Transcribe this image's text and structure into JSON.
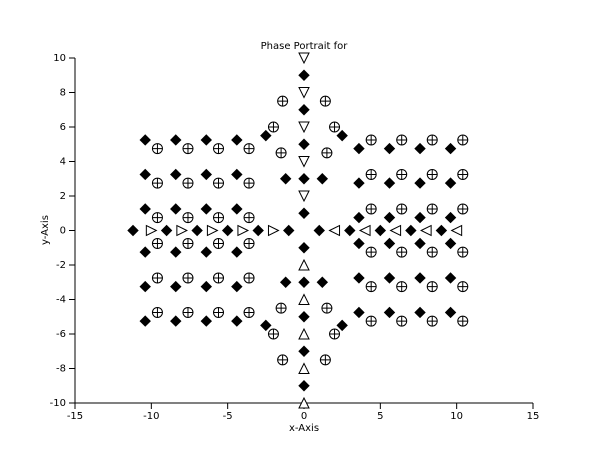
{
  "chart_data": {
    "type": "scatter",
    "title": "Phase Portrait for",
    "x_label": "x-Axis",
    "y_label": "y-Axis",
    "xlim": [
      -15,
      15
    ],
    "ylim": [
      -10,
      10
    ],
    "xticks": [
      -15,
      -10,
      -5,
      0,
      5,
      10,
      15
    ],
    "yticks": [
      -10,
      -8,
      -6,
      -4,
      -2,
      0,
      2,
      4,
      6,
      8,
      10
    ],
    "color": "#000000",
    "series": [
      {
        "marker": "diamond",
        "x": [
          -10.4,
          -8.4,
          -6.4,
          -4.4,
          3.6,
          5.6,
          7.6,
          9.6,
          -10.4,
          -8.4,
          -6.4,
          -4.4,
          3.6,
          5.6,
          7.6,
          9.6,
          -10.4,
          -8.4,
          -6.4,
          -4.4,
          3.6,
          5.6,
          7.6,
          9.6,
          -10.4,
          -8.4,
          -6.4,
          -4.4,
          3.6,
          5.6,
          7.6,
          9.6,
          -10.4,
          -8.4,
          -6.4,
          -4.4,
          3.6,
          5.6,
          7.6,
          9.6,
          -10.4,
          -8.4,
          -6.4,
          -4.4,
          3.6,
          5.6,
          7.6,
          9.6
        ],
        "y": [
          5.25,
          5.25,
          5.25,
          5.25,
          4.75,
          4.75,
          4.75,
          4.75,
          3.25,
          3.25,
          3.25,
          3.25,
          2.75,
          2.75,
          2.75,
          2.75,
          1.25,
          1.25,
          1.25,
          1.25,
          0.75,
          0.75,
          0.75,
          0.75,
          -1.25,
          -1.25,
          -1.25,
          -1.25,
          -0.75,
          -0.75,
          -0.75,
          -0.75,
          -3.25,
          -3.25,
          -3.25,
          -3.25,
          -2.75,
          -2.75,
          -2.75,
          -2.75,
          -5.25,
          -5.25,
          -5.25,
          -5.25,
          -4.75,
          -4.75,
          -4.75,
          -4.75
        ]
      },
      {
        "marker": "circle-plus",
        "x": [
          -9.6,
          -7.6,
          -5.6,
          -3.6,
          4.4,
          6.4,
          8.4,
          10.4,
          -9.6,
          -7.6,
          -5.6,
          -3.6,
          4.4,
          6.4,
          8.4,
          10.4,
          -9.6,
          -7.6,
          -5.6,
          -3.6,
          4.4,
          6.4,
          8.4,
          10.4,
          -9.6,
          -7.6,
          -5.6,
          -3.6,
          4.4,
          6.4,
          8.4,
          10.4,
          -9.6,
          -7.6,
          -5.6,
          -3.6,
          4.4,
          6.4,
          8.4,
          10.4,
          -9.6,
          -7.6,
          -5.6,
          -3.6,
          4.4,
          6.4,
          8.4,
          10.4
        ],
        "y": [
          4.75,
          4.75,
          4.75,
          4.75,
          5.25,
          5.25,
          5.25,
          5.25,
          2.75,
          2.75,
          2.75,
          2.75,
          3.25,
          3.25,
          3.25,
          3.25,
          0.75,
          0.75,
          0.75,
          0.75,
          1.25,
          1.25,
          1.25,
          1.25,
          -0.75,
          -0.75,
          -0.75,
          -0.75,
          -1.25,
          -1.25,
          -1.25,
          -1.25,
          -2.75,
          -2.75,
          -2.75,
          -2.75,
          -3.25,
          -3.25,
          -3.25,
          -3.25,
          -4.75,
          -4.75,
          -4.75,
          -4.75,
          -5.25,
          -5.25,
          -5.25,
          -5.25
        ]
      },
      {
        "marker": "diamond",
        "x": [
          -11.2,
          -9,
          -7,
          -5,
          -3,
          -1,
          1,
          3,
          5,
          7,
          9,
          0,
          0,
          0,
          0,
          0,
          0,
          0,
          0,
          0,
          0,
          -2.5,
          2.5,
          -2.5,
          2.5,
          -1.2,
          1.2,
          -1.2,
          1.2
        ],
        "y": [
          0,
          0,
          0,
          0,
          0,
          0,
          0,
          0,
          0,
          0,
          0,
          9,
          7,
          5,
          3,
          1,
          -1,
          -3,
          -5,
          -7,
          -9,
          5.5,
          5.5,
          -5.5,
          -5.5,
          3,
          3,
          -3,
          -3
        ]
      },
      {
        "marker": "circle-plus",
        "x": [
          -2,
          -1.5,
          2,
          1.5,
          -2,
          -1.5,
          2,
          1.5,
          -1.4,
          1.4,
          -1.4,
          1.4
        ],
        "y": [
          6,
          4.5,
          6,
          4.5,
          -6,
          -4.5,
          -6,
          -4.5,
          7.5,
          7.5,
          -7.5,
          -7.5
        ]
      },
      {
        "marker": "triangle-right",
        "x": [
          -10,
          -8,
          -6,
          -4,
          -2
        ],
        "y": [
          0,
          0,
          0,
          0,
          0
        ]
      },
      {
        "marker": "triangle-left",
        "x": [
          2,
          4,
          6,
          8,
          10
        ],
        "y": [
          0,
          0,
          0,
          0,
          0
        ]
      },
      {
        "marker": "triangle-down",
        "x": [
          0,
          0,
          0,
          0,
          0
        ],
        "y": [
          10,
          8,
          6,
          4,
          2
        ]
      },
      {
        "marker": "triangle-up",
        "x": [
          0,
          0,
          0,
          0,
          0
        ],
        "y": [
          -2,
          -4,
          -6,
          -8,
          -10
        ]
      }
    ]
  }
}
